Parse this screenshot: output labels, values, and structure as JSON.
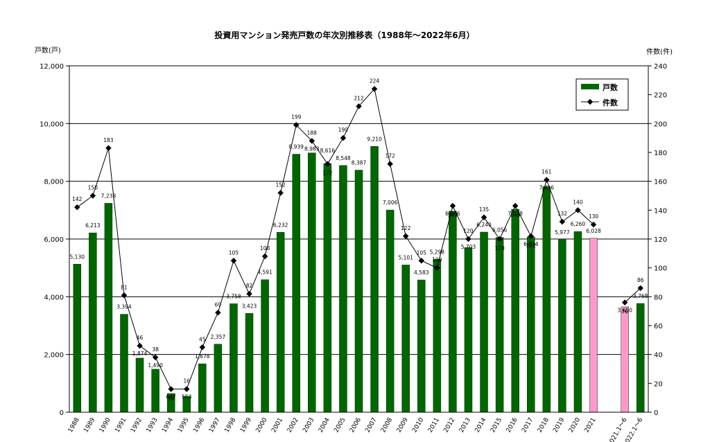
{
  "chart_data": {
    "type": "bar",
    "title": "投資用マンション発売戸数の年次別推移表（1988年〜2022年6月）",
    "ylabel": "戸数(戸)",
    "y2label": "件数(件)",
    "ylim": [
      0,
      12000
    ],
    "y2lim": [
      0,
      240
    ],
    "yticks": [
      "0",
      "2,000",
      "4,000",
      "6,000",
      "8,000",
      "10,000",
      "12,000"
    ],
    "y2ticks": [
      "0",
      "20",
      "40",
      "60",
      "80",
      "100",
      "120",
      "140",
      "160",
      "180",
      "200",
      "220",
      "240"
    ],
    "grid": true,
    "legend_position": "top-right",
    "colors": {
      "bar": "#006600",
      "bar_highlight": "#ff99cc",
      "line": "#000000"
    },
    "categories": [
      "1988",
      "1989",
      "1990",
      "1991",
      "1992",
      "1993",
      "1994",
      "1995",
      "1996",
      "1997",
      "1998",
      "1999",
      "2000",
      "2001",
      "2002",
      "2003",
      "2004",
      "2005",
      "2006",
      "2007",
      "2008",
      "2009",
      "2010",
      "2011",
      "2012",
      "2013",
      "2014",
      "2015",
      "2016",
      "2017",
      "2018",
      "2019",
      "2020",
      "2021",
      "",
      "2021.1〜6",
      "2022.1〜6"
    ],
    "series": [
      {
        "name": "戸数",
        "type": "bar",
        "axis": "left",
        "values": [
          5130,
          6213,
          7238,
          3394,
          1874,
          1490,
          647,
          553,
          1678,
          2357,
          3758,
          3423,
          4591,
          6232,
          8939,
          8983,
          8616,
          8548,
          8387,
          9210,
          7006,
          5101,
          4583,
          5298,
          6966,
          5703,
          6240,
          6056,
          7028,
          6074,
          7816,
          5977,
          6260,
          6028,
          null,
          3650,
          3768
        ],
        "labels": [
          "5,130",
          "6,213",
          "7,238",
          "3,394",
          "1,874",
          "1,490",
          "647",
          "553",
          "1,678",
          "2,357",
          "3,758",
          "3,423",
          "4,591",
          "6,232",
          "8,939",
          "8,983",
          "8,616",
          "8,548",
          "8,387",
          "9,210",
          "7,006",
          "5,101",
          "4,583",
          "5,298",
          "6,966",
          "5,703",
          "6,240",
          "6,056",
          "7,028",
          "6,074",
          "7,816",
          "5,977",
          "6,260",
          "6,028",
          "",
          "3,650",
          "3,768"
        ],
        "highlight": [
          33,
          35
        ]
      },
      {
        "name": "件数",
        "type": "line",
        "axis": "right",
        "values": [
          142,
          150,
          183,
          81,
          46,
          38,
          16,
          16,
          45,
          69,
          105,
          82,
          108,
          152,
          199,
          188,
          172,
          190,
          212,
          224,
          172,
          122,
          105,
          100,
          143,
          120,
          135,
          120,
          143,
          122,
          161,
          132,
          140,
          130,
          null,
          76,
          86
        ]
      }
    ]
  }
}
